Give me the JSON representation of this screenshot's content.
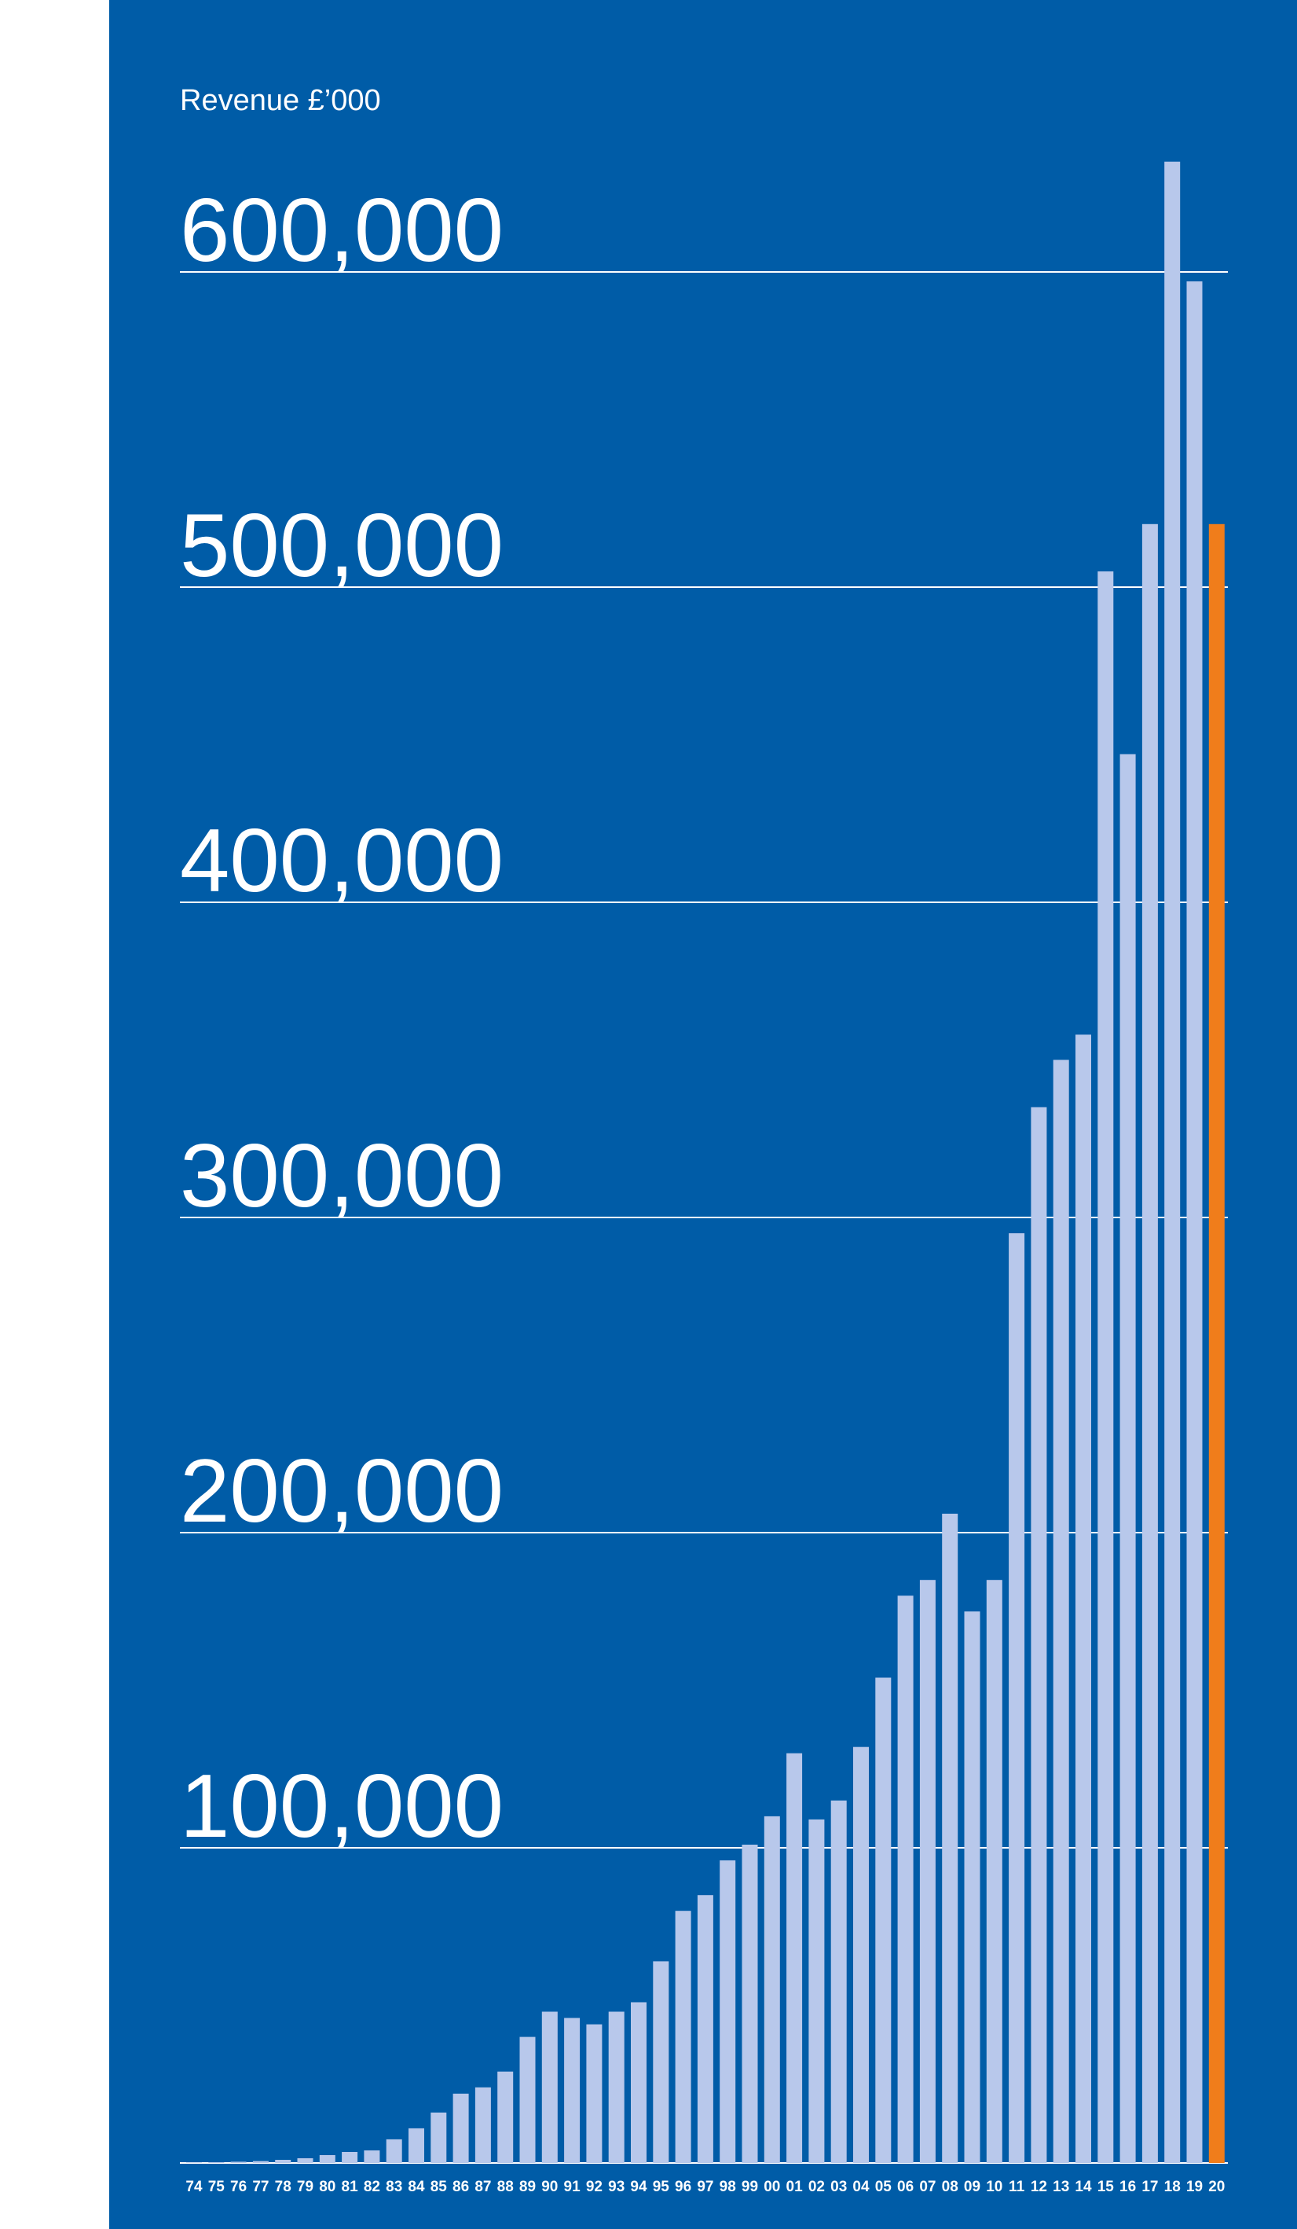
{
  "chart_data": {
    "type": "bar",
    "title": "",
    "ylabel": "Revenue £’000",
    "xlabel": "",
    "ylim": [
      0,
      600000
    ],
    "yticks": [
      100000,
      200000,
      300000,
      400000,
      500000,
      600000
    ],
    "ytick_labels": [
      "100,000",
      "200,000",
      "300,000",
      "400,000",
      "500,000",
      "600,000"
    ],
    "grid": true,
    "legend": "none",
    "colors": {
      "background": "#005ca7",
      "bar": "#b8c8eb",
      "highlight": "#f07d1b",
      "gridline": "#ffffff",
      "text": "#ffffff"
    },
    "highlight_category": "20",
    "categories": [
      "74",
      "75",
      "76",
      "77",
      "78",
      "79",
      "80",
      "81",
      "82",
      "83",
      "84",
      "85",
      "86",
      "87",
      "88",
      "89",
      "90",
      "91",
      "92",
      "93",
      "94",
      "95",
      "96",
      "97",
      "98",
      "99",
      "00",
      "01",
      "02",
      "03",
      "04",
      "05",
      "06",
      "07",
      "08",
      "09",
      "10",
      "11",
      "12",
      "13",
      "14",
      "15",
      "16",
      "17",
      "18",
      "19",
      "20"
    ],
    "values": [
      150,
      250,
      400,
      600,
      1000,
      1500,
      2500,
      3500,
      4000,
      7500,
      11000,
      16000,
      22000,
      24000,
      29000,
      40000,
      48000,
      46000,
      44000,
      48000,
      51000,
      64000,
      80000,
      85000,
      96000,
      101000,
      110000,
      130000,
      109000,
      115000,
      132000,
      154000,
      180000,
      185000,
      206000,
      175000,
      185000,
      295000,
      335000,
      350000,
      358000,
      505000,
      447000,
      520000,
      635000,
      597000,
      520000
    ]
  }
}
